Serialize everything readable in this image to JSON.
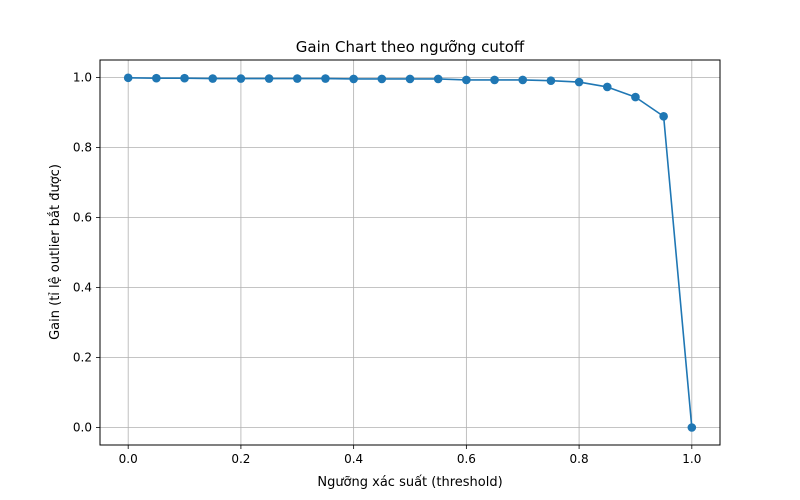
{
  "chart_data": {
    "type": "line",
    "title": "Gain Chart theo ngưỡng cutoff",
    "xlabel": "Ngưỡng xác suất (threshold)",
    "ylabel": "Gain (tỉ lệ outlier bắt được)",
    "xlim": [
      -0.05,
      1.05
    ],
    "ylim": [
      -0.05,
      1.05
    ],
    "xticks": [
      0.0,
      0.2,
      0.4,
      0.6,
      0.8,
      1.0
    ],
    "yticks": [
      0.0,
      0.2,
      0.4,
      0.6,
      0.8,
      1.0
    ],
    "xtick_labels": [
      "0.0",
      "0.2",
      "0.4",
      "0.6",
      "0.8",
      "1.0"
    ],
    "ytick_labels": [
      "0.0",
      "0.2",
      "0.4",
      "0.6",
      "0.8",
      "1.0"
    ],
    "grid": true,
    "legend": "none",
    "marker": "circle",
    "color": "#1f77b4",
    "series": [
      {
        "x": [
          0.0,
          0.05,
          0.1,
          0.15,
          0.2,
          0.25,
          0.3,
          0.35,
          0.4,
          0.45,
          0.5,
          0.55,
          0.6,
          0.65,
          0.7,
          0.75,
          0.8,
          0.85,
          0.9,
          0.95,
          1.0
        ],
        "values": [
          0.999,
          0.998,
          0.998,
          0.997,
          0.997,
          0.997,
          0.997,
          0.997,
          0.996,
          0.996,
          0.996,
          0.996,
          0.993,
          0.993,
          0.993,
          0.991,
          0.987,
          0.973,
          0.944,
          0.889,
          0.0
        ]
      }
    ]
  }
}
